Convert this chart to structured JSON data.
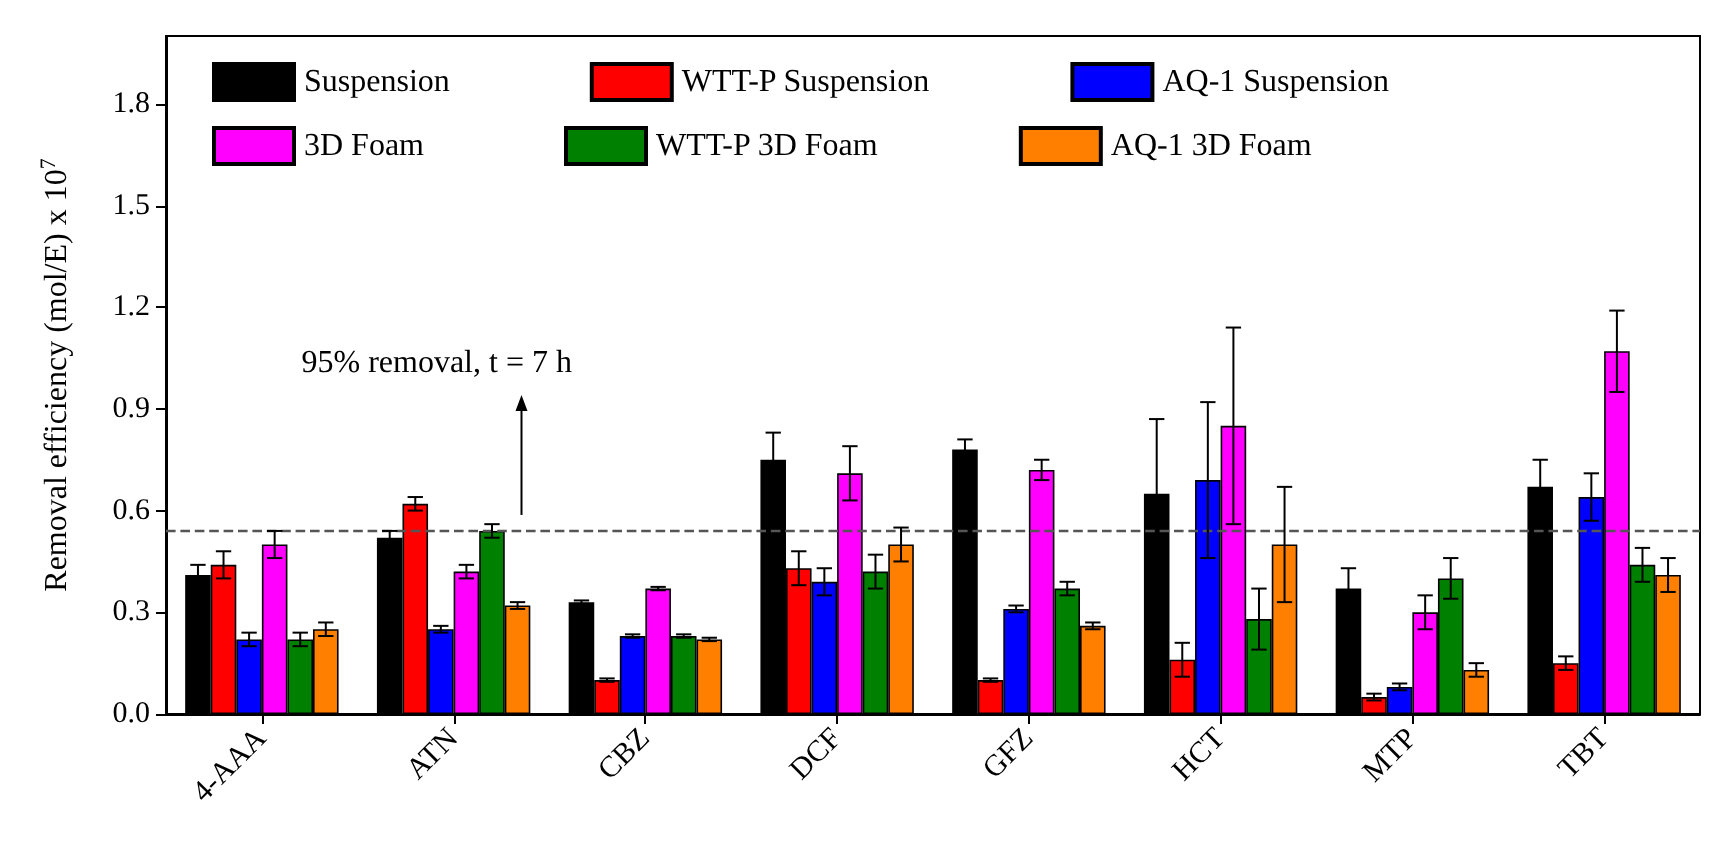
{
  "chart_data": {
    "type": "bar",
    "ylabel": "Removal efficiency (mol/E) x 10$^{7}$",
    "categories": [
      "4-AAA",
      "ATN",
      "CBZ",
      "DCF",
      "GFZ",
      "HCT",
      "MTP",
      "TBT"
    ],
    "series": [
      {
        "name": "Suspension",
        "color": "#000000",
        "values": [
          0.41,
          0.52,
          0.33,
          0.75,
          0.78,
          0.65,
          0.37,
          0.67
        ],
        "errors": [
          0.03,
          0.02,
          0.005,
          0.08,
          0.03,
          0.22,
          0.06,
          0.08
        ]
      },
      {
        "name": "WTT-P Suspension",
        "color": "#ff0000",
        "values": [
          0.44,
          0.62,
          0.1,
          0.43,
          0.1,
          0.16,
          0.05,
          0.15
        ],
        "errors": [
          0.04,
          0.02,
          0.005,
          0.05,
          0.005,
          0.05,
          0.01,
          0.02
        ]
      },
      {
        "name": "AQ-1 Suspension",
        "color": "#0000ff",
        "values": [
          0.22,
          0.25,
          0.23,
          0.39,
          0.31,
          0.69,
          0.08,
          0.64
        ],
        "errors": [
          0.02,
          0.01,
          0.005,
          0.04,
          0.01,
          0.23,
          0.01,
          0.07
        ]
      },
      {
        "name": "3D Foam",
        "color": "#ff00ff",
        "values": [
          0.5,
          0.42,
          0.37,
          0.71,
          0.72,
          0.85,
          0.3,
          1.07
        ],
        "errors": [
          0.04,
          0.02,
          0.005,
          0.08,
          0.03,
          0.29,
          0.05,
          0.12
        ]
      },
      {
        "name": "WTT-P 3D Foam",
        "color": "#008000",
        "values": [
          0.22,
          0.54,
          0.23,
          0.42,
          0.37,
          0.28,
          0.4,
          0.44
        ],
        "errors": [
          0.02,
          0.02,
          0.005,
          0.05,
          0.02,
          0.09,
          0.06,
          0.05
        ]
      },
      {
        "name": "AQ-1 3D Foam",
        "color": "#ff8000",
        "values": [
          0.25,
          0.32,
          0.22,
          0.5,
          0.26,
          0.5,
          0.13,
          0.41
        ],
        "errors": [
          0.02,
          0.01,
          0.005,
          0.05,
          0.01,
          0.17,
          0.02,
          0.05
        ]
      }
    ],
    "ylim": [
      0,
      2
    ],
    "yticks": [
      {
        "value": 0,
        "label": "0.0"
      },
      0.3,
      0.6,
      0.9,
      1.2,
      1.5,
      1.8
    ],
    "ref_lines": [
      {
        "axis": "y",
        "value": 0.54,
        "line_style": "dashed",
        "color": "#555555"
      }
    ],
    "annotations": [
      "95% removal, t = 7 h"
    ],
    "legend": "top",
    "grid": false
  }
}
